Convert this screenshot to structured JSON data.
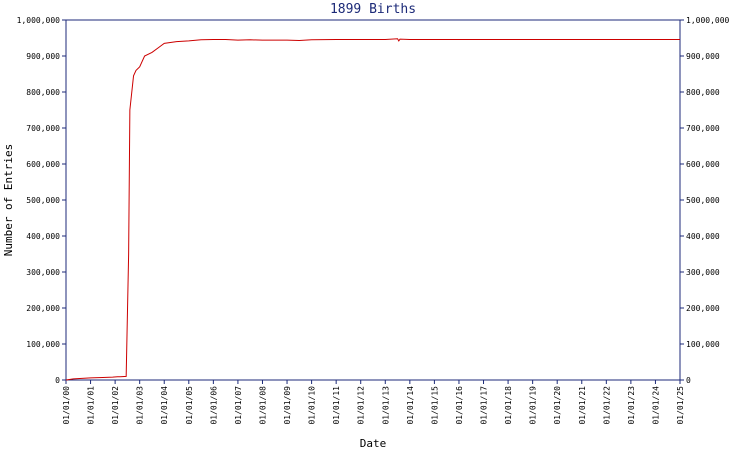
{
  "chart_data": {
    "type": "line",
    "title": "1899 Births",
    "xlabel": "Date",
    "ylabel": "Number of Entries",
    "ylim": [
      0,
      1000000
    ],
    "y_ticks": [
      0,
      100000,
      200000,
      300000,
      400000,
      500000,
      600000,
      700000,
      800000,
      900000,
      1000000
    ],
    "y_tick_labels": [
      "0",
      "100,000",
      "200,000",
      "300,000",
      "400,000",
      "500,000",
      "600,000",
      "700,000",
      "800,000",
      "900,000",
      "1,000,000"
    ],
    "x_tick_labels": [
      "01/01/00",
      "01/01/01",
      "01/01/02",
      "01/01/03",
      "01/01/04",
      "01/01/05",
      "01/01/06",
      "01/01/07",
      "01/01/08",
      "01/01/09",
      "01/01/10",
      "01/01/11",
      "01/01/12",
      "01/01/13",
      "01/01/14",
      "01/01/15",
      "01/01/16",
      "01/01/17",
      "01/01/18",
      "01/01/19",
      "01/01/20",
      "01/01/21",
      "01/01/22",
      "01/01/23",
      "01/01/24",
      "01/01/25"
    ],
    "grid": false,
    "line_color": "#cc0000",
    "axis_color": "#1c2a78",
    "series": [
      {
        "x": [
          2000.0,
          2000.3,
          2001.0,
          2001.5,
          2001.9,
          2002.1,
          2002.2,
          2002.45,
          2002.55,
          2002.6,
          2002.75,
          2002.85,
          2003.0,
          2003.2,
          2003.5,
          2003.8,
          2004.0,
          2004.5,
          2005.0,
          2005.5,
          2006.0,
          2006.5,
          2007.0,
          2007.5,
          2008.0,
          2009.0,
          2009.5,
          2010.0,
          2011.0,
          2012.0,
          2013.0,
          2013.5,
          2013.55,
          2013.6,
          2014.0,
          2015.0,
          2016.0,
          2017.0,
          2018.0,
          2019.0,
          2020.0,
          2021.0,
          2022.0,
          2023.0,
          2024.0,
          2025.0
        ],
        "y": [
          0,
          3000,
          6000,
          7000,
          8000,
          9000,
          9000,
          10000,
          350000,
          750000,
          845000,
          860000,
          870000,
          900000,
          910000,
          925000,
          935000,
          940000,
          942000,
          945000,
          946000,
          946000,
          944000,
          945000,
          944000,
          944000,
          943000,
          945000,
          946000,
          946000,
          946000,
          948000,
          942000,
          947000,
          946000,
          946000,
          946000,
          946000,
          946000,
          946000,
          946000,
          946000,
          946000,
          946000,
          946000,
          946000
        ]
      }
    ]
  }
}
